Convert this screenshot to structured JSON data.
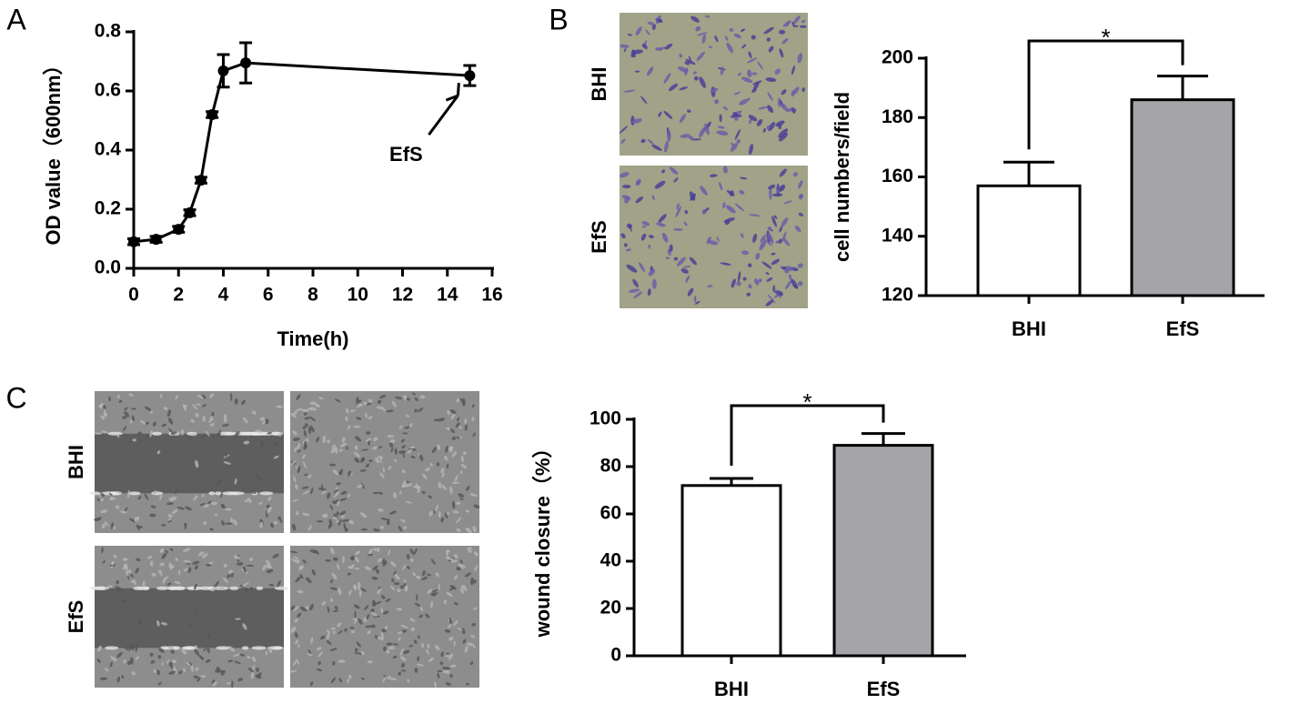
{
  "chart_data": [
    {
      "type": "line",
      "panel": "A",
      "xlabel": "Time(h)",
      "ylabel": "OD value（600nm）",
      "x": [
        0,
        1,
        2,
        2.5,
        3,
        3.5,
        4,
        5,
        15
      ],
      "values": [
        0.09,
        0.098,
        0.132,
        0.188,
        0.298,
        0.52,
        0.668,
        0.695,
        0.652
      ],
      "errors": [
        0.01,
        0.01,
        0.01,
        0.01,
        0.01,
        0.01,
        0.055,
        0.068,
        0.034
      ],
      "color": "#000000",
      "xlim": [
        0,
        16
      ],
      "xticks": [
        0,
        2,
        4,
        6,
        8,
        10,
        12,
        14,
        16
      ],
      "ylim": [
        0,
        0.8
      ],
      "yticks": [
        {
          "value": 0,
          "label": "0.0"
        },
        0.2,
        0.4,
        0.6,
        0.8
      ],
      "annotation": "EfS"
    },
    {
      "type": "bar",
      "panel": "B",
      "image_labels": [
        "BHI",
        "EfS"
      ],
      "ylabel": "cell numbers/field",
      "categories": [
        "BHI",
        "EfS"
      ],
      "values": [
        157,
        186
      ],
      "errors": [
        8,
        8
      ],
      "colors": [
        "#ffffff",
        "#a5a5a9"
      ],
      "ylim": [
        120,
        200
      ],
      "yticks": [
        120,
        140,
        160,
        180,
        200
      ],
      "significance": "*"
    },
    {
      "type": "bar",
      "panel": "C",
      "image_labels": [
        "BHI",
        "EfS"
      ],
      "ylabel": "wound closure（%）",
      "categories": [
        "BHI",
        "EfS"
      ],
      "values": [
        72,
        89
      ],
      "errors": [
        3,
        5
      ],
      "colors": [
        "#ffffff",
        "#a5a5a9"
      ],
      "ylim": [
        0,
        100
      ],
      "yticks": [
        0,
        20,
        40,
        60,
        80,
        100
      ],
      "significance": "*"
    }
  ]
}
